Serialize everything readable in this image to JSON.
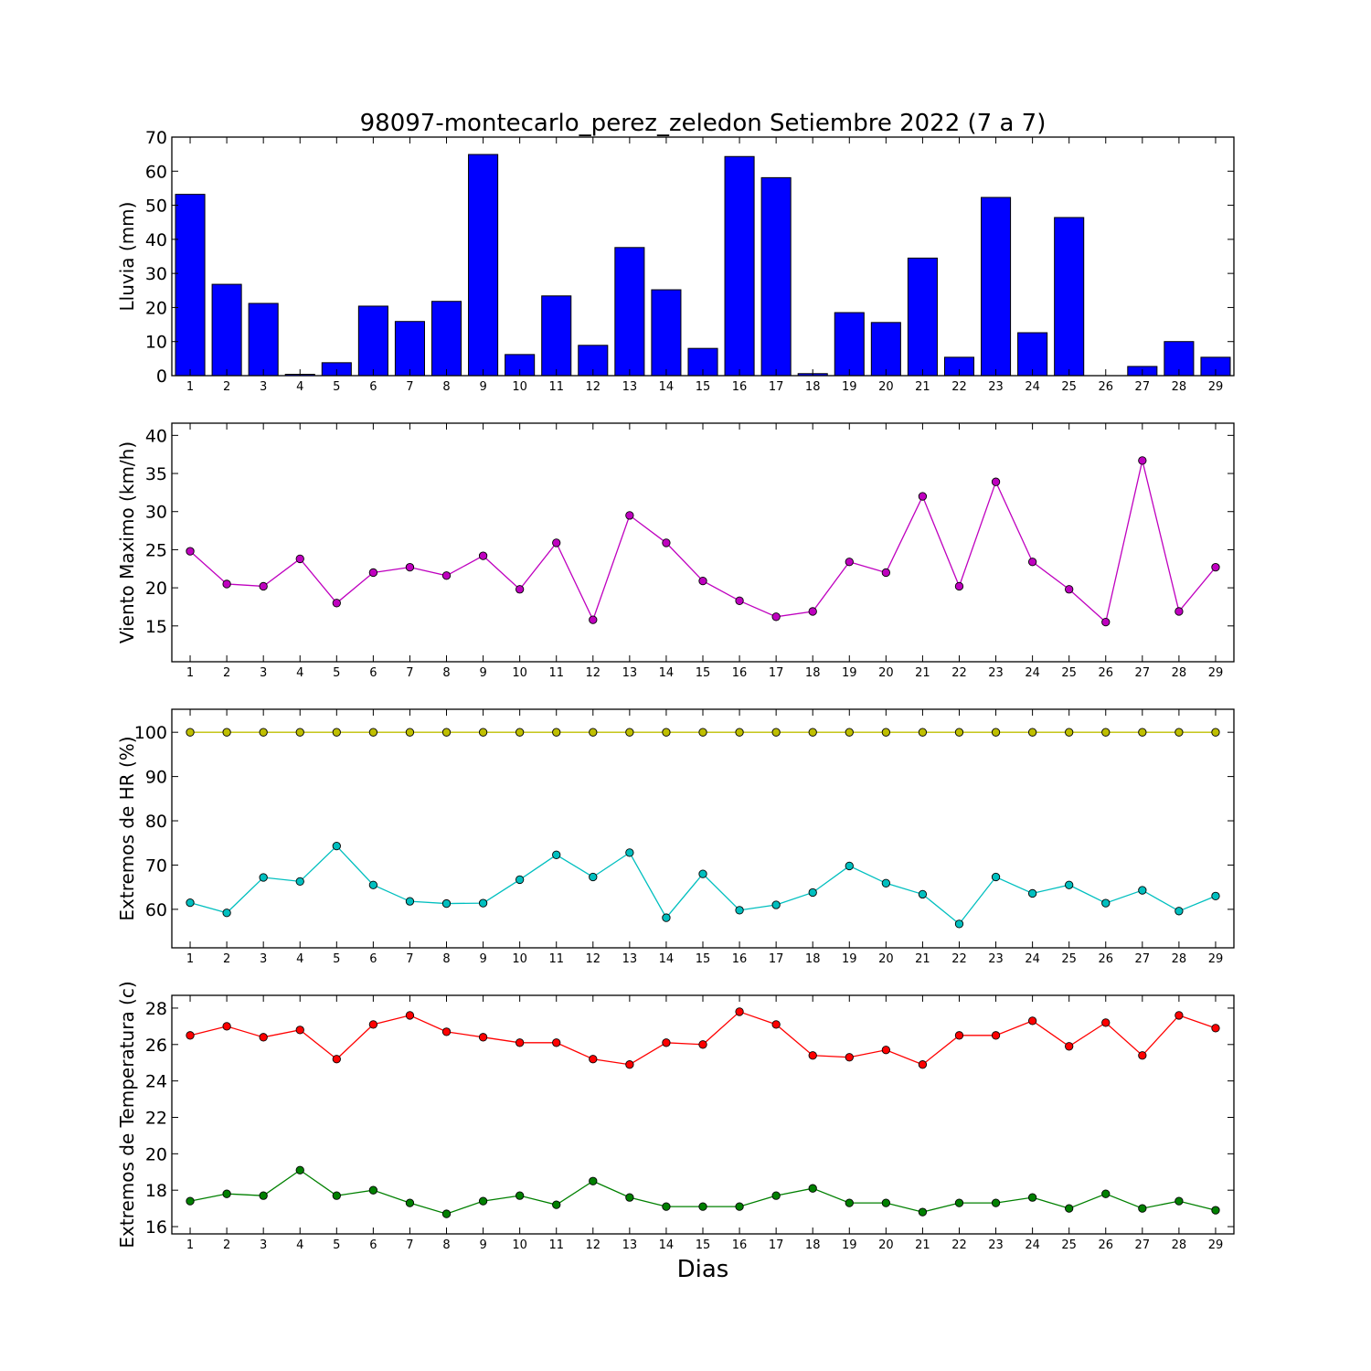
{
  "figure_title": "98097-montecarlo_perez_zeledon Setiembre 2022  (7 a 7)",
  "xlabel": "Dias",
  "chart_data": [
    {
      "type": "bar",
      "ylabel": "Lluvia (mm)",
      "ylim": [
        0,
        70
      ],
      "yticks": [
        0,
        10,
        20,
        30,
        40,
        50,
        60,
        70
      ],
      "x": [
        1,
        2,
        3,
        4,
        5,
        6,
        7,
        8,
        9,
        10,
        11,
        12,
        13,
        14,
        15,
        16,
        17,
        18,
        19,
        20,
        21,
        22,
        23,
        24,
        25,
        26,
        27,
        28,
        29
      ],
      "series": [
        {
          "values": [
            53.2,
            26.8,
            21.2,
            0.4,
            3.8,
            20.4,
            15.9,
            21.8,
            64.9,
            6.2,
            23.4,
            8.9,
            37.6,
            25.2,
            8.0,
            64.3,
            58.1,
            0.6,
            18.5,
            15.6,
            34.5,
            5.4,
            52.3,
            12.6,
            46.4,
            0.0,
            2.7,
            10.0,
            5.4
          ],
          "color": "#0000ff"
        }
      ],
      "grid": false
    },
    {
      "type": "line",
      "ylabel": "Viento Maximo (km/h)",
      "ylim": [
        10.3,
        41.6
      ],
      "yticks": [
        15,
        20,
        25,
        30,
        35,
        40
      ],
      "x": [
        1,
        2,
        3,
        4,
        5,
        6,
        7,
        8,
        9,
        10,
        11,
        12,
        13,
        14,
        15,
        16,
        17,
        18,
        19,
        20,
        21,
        22,
        23,
        24,
        25,
        26,
        27,
        28,
        29
      ],
      "series": [
        {
          "values": [
            24.8,
            20.5,
            20.2,
            23.8,
            18.0,
            22.0,
            22.7,
            21.6,
            24.2,
            19.8,
            25.9,
            15.8,
            29.5,
            25.9,
            20.9,
            18.3,
            16.2,
            16.9,
            23.4,
            22.0,
            32.0,
            20.2,
            33.9,
            23.4,
            19.8,
            15.5,
            36.7,
            16.9,
            22.7
          ],
          "color": "#bf00bf"
        }
      ],
      "grid": false
    },
    {
      "type": "line",
      "ylabel": "Extremos de HR (%)",
      "ylim": [
        51.3,
        105.2
      ],
      "yticks": [
        60,
        70,
        80,
        90,
        100
      ],
      "x": [
        1,
        2,
        3,
        4,
        5,
        6,
        7,
        8,
        9,
        10,
        11,
        12,
        13,
        14,
        15,
        16,
        17,
        18,
        19,
        20,
        21,
        22,
        23,
        24,
        25,
        26,
        27,
        28,
        29
      ],
      "series": [
        {
          "values": [
            100,
            100,
            100,
            100,
            100,
            100,
            100,
            100,
            100,
            100,
            100,
            100,
            100,
            100,
            100,
            100,
            100,
            100,
            100,
            100,
            100,
            100,
            100,
            100,
            100,
            100,
            100,
            100,
            100
          ],
          "color": "#bfbf00"
        },
        {
          "values": [
            61.5,
            59.2,
            67.2,
            66.3,
            74.3,
            65.5,
            61.8,
            61.3,
            61.4,
            66.7,
            72.3,
            67.3,
            72.8,
            58.1,
            68.0,
            59.8,
            61.0,
            63.8,
            69.8,
            65.9,
            63.4,
            56.7,
            67.3,
            63.6,
            65.5,
            61.4,
            64.3,
            59.6,
            63.0
          ],
          "color": "#00bfbf"
        }
      ],
      "grid": false
    },
    {
      "type": "line",
      "ylabel": "Extremos de Temperatura (c)",
      "ylim": [
        15.6,
        28.7
      ],
      "yticks": [
        16,
        18,
        20,
        22,
        24,
        26,
        28
      ],
      "x": [
        1,
        2,
        3,
        4,
        5,
        6,
        7,
        8,
        9,
        10,
        11,
        12,
        13,
        14,
        15,
        16,
        17,
        18,
        19,
        20,
        21,
        22,
        23,
        24,
        25,
        26,
        27,
        28,
        29
      ],
      "series": [
        {
          "values": [
            26.5,
            27.0,
            26.4,
            26.8,
            25.2,
            27.1,
            27.6,
            26.7,
            26.4,
            26.1,
            26.1,
            25.2,
            24.9,
            26.1,
            26.0,
            27.8,
            27.1,
            25.4,
            25.3,
            25.7,
            24.9,
            26.5,
            26.5,
            27.3,
            25.9,
            27.2,
            25.4,
            27.6,
            26.9
          ],
          "color": "#ff0000"
        },
        {
          "values": [
            17.4,
            17.8,
            17.7,
            19.1,
            17.7,
            18.0,
            17.3,
            16.7,
            17.4,
            17.7,
            17.2,
            18.5,
            17.6,
            17.1,
            17.1,
            17.1,
            17.7,
            18.1,
            17.3,
            17.3,
            16.8,
            17.3,
            17.3,
            17.6,
            17.0,
            17.8,
            17.0,
            17.4,
            16.9
          ],
          "color": "#008000"
        }
      ],
      "grid": false
    }
  ]
}
